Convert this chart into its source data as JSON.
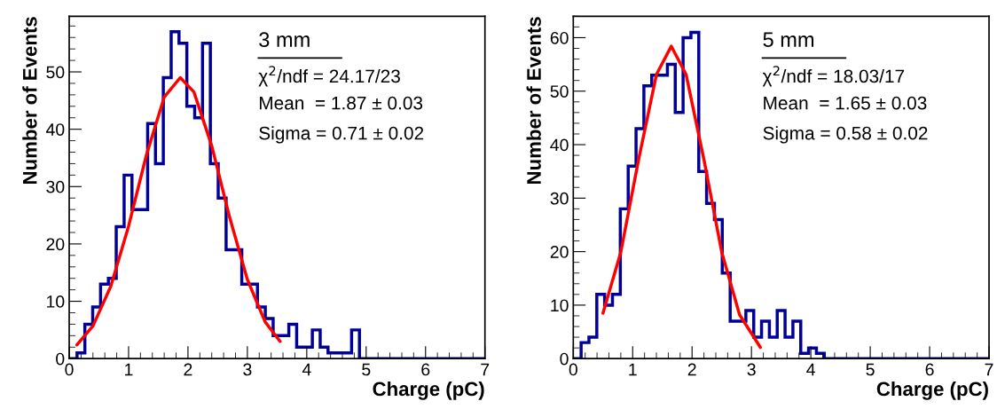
{
  "chart_data": [
    {
      "type": "histogram",
      "xlabel": "Charge (pC)",
      "ylabel": "Number of Events",
      "annotations": [
        "3 mm",
        "χ$^{2}$/ndf = 24.17/23",
        "Mean  = 1.87 ± 0.03",
        "Sigma = 0.71 ± 0.02"
      ],
      "bins": [
        0,
        0.132,
        0.264,
        0.396,
        0.528,
        0.66,
        0.792,
        0.925,
        1.057,
        1.189,
        1.321,
        1.453,
        1.585,
        1.717,
        1.849,
        1.981,
        2.113,
        2.245,
        2.377,
        2.509,
        2.642,
        2.774,
        2.906,
        3.038,
        3.17,
        3.302,
        3.434,
        3.566,
        3.698,
        3.83,
        3.962,
        4.094,
        4.226,
        4.358,
        4.491,
        4.623,
        4.755,
        4.887,
        5.019,
        5.151,
        5.283,
        5.415,
        5.547,
        5.679,
        5.811,
        5.943,
        6.075,
        6.208,
        6.34,
        6.472,
        6.604,
        6.736,
        6.868,
        7
      ],
      "series": [
        {
          "color": "#000099",
          "values": [
            0,
            1,
            6,
            9,
            13,
            14,
            23,
            32,
            26,
            26,
            41,
            34,
            49,
            57,
            55,
            44,
            42,
            55,
            34,
            28,
            19,
            19,
            13,
            13,
            9,
            7,
            4,
            4,
            6,
            2,
            2,
            5,
            2,
            1,
            1,
            1,
            5,
            0,
            0,
            0,
            0,
            0,
            0,
            0,
            0,
            0,
            0,
            0,
            0,
            0,
            0,
            0,
            0
          ]
        },
        {
          "type": "line",
          "color": "#ff0000",
          "x": [
            0.13,
            0.4,
            0.7,
            1.0,
            1.3,
            1.6,
            1.87,
            2.1,
            2.4,
            2.7,
            3.0,
            3.3,
            3.55
          ],
          "values": [
            2.4,
            5.7,
            12.6,
            23.1,
            35.5,
            45.6,
            49,
            46.5,
            37.1,
            24.7,
            13.8,
            6.4,
            3.0
          ]
        }
      ],
      "xlim": [
        0,
        7
      ],
      "xticks": [
        0,
        1,
        2,
        3,
        4,
        5,
        6,
        7
      ],
      "ylim": [
        0,
        59.7
      ],
      "yticks": [
        0,
        10,
        20,
        30,
        40,
        50
      ],
      "grid": false,
      "legend": false
    },
    {
      "type": "histogram",
      "xlabel": "Charge (pC)",
      "ylabel": "Number of Events",
      "annotations": [
        "5 mm",
        "χ$^{2}$/ndf = 18.03/17",
        "Mean  = 1.65 ± 0.03",
        "Sigma = 0.58 ± 0.02"
      ],
      "bins": [
        0,
        0.132,
        0.264,
        0.396,
        0.528,
        0.66,
        0.792,
        0.925,
        1.057,
        1.189,
        1.321,
        1.453,
        1.585,
        1.717,
        1.849,
        1.981,
        2.113,
        2.245,
        2.377,
        2.509,
        2.642,
        2.774,
        2.906,
        3.038,
        3.17,
        3.302,
        3.434,
        3.566,
        3.698,
        3.83,
        3.962,
        4.094,
        4.226,
        4.358,
        4.491,
        4.623,
        4.755,
        4.887,
        5.019,
        5.151,
        5.283,
        5.415,
        5.547,
        5.679,
        5.811,
        5.943,
        6.075,
        6.208,
        6.34,
        6.472,
        6.604,
        6.736,
        6.868,
        7
      ],
      "series": [
        {
          "color": "#000099",
          "values": [
            0,
            3,
            4,
            12,
            10,
            12,
            28,
            36,
            43,
            51,
            53,
            53,
            55,
            46,
            60,
            61,
            35,
            29,
            26,
            16,
            7,
            7,
            9,
            4,
            7,
            4,
            9,
            4,
            7,
            1,
            2,
            1,
            0,
            0,
            0,
            0,
            0,
            0,
            0,
            0,
            0,
            0,
            0,
            0,
            0,
            0,
            0,
            0,
            0,
            0,
            0,
            0,
            0
          ]
        },
        {
          "type": "line",
          "color": "#ff0000",
          "x": [
            0.5,
            0.8,
            1.1,
            1.4,
            1.65,
            1.9,
            2.2,
            2.5,
            2.8,
            3.15
          ],
          "values": [
            8.5,
            19.9,
            37.2,
            53.1,
            58.4,
            53.1,
            37.2,
            19.9,
            8.2,
            2.1
          ]
        }
      ],
      "xlim": [
        0,
        7
      ],
      "xticks": [
        0,
        1,
        2,
        3,
        4,
        5,
        6,
        7
      ],
      "ylim": [
        0,
        64
      ],
      "yticks": [
        0,
        10,
        20,
        30,
        40,
        50,
        60
      ],
      "grid": false,
      "legend": false
    }
  ]
}
